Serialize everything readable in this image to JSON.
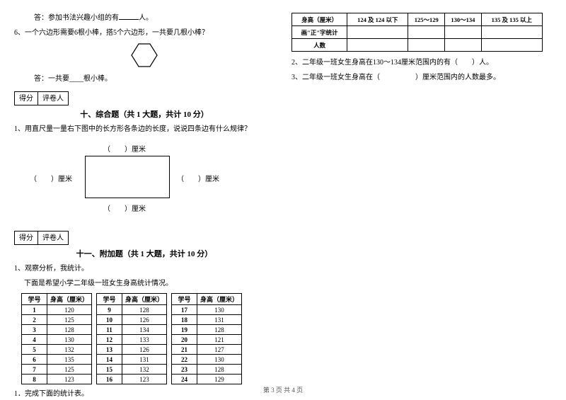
{
  "left": {
    "q5_answer_prefix": "答：参加书法兴趣小组的有",
    "q5_answer_suffix": "人。",
    "q6_text": "6、一个六边形需要6根小棒，搭5个六边形，一共要几根小棒？",
    "q6_answer": "答：一共要____根小棒。",
    "sec10": {
      "score_label": "得分",
      "grader_label": "评卷人",
      "title": "十、综合题（共 1 大题，共计 10 分）",
      "q1": "1、用直尺量一量右下图中的长方形各条边的长度，说说四条边有什么规律？",
      "unit": "厘米"
    },
    "sec11": {
      "score_label": "得分",
      "grader_label": "评卷人",
      "title": "十一、附加题（共 1 大题，共计 10 分）",
      "q1": "1、观察分析，我统计。",
      "q1_sub": "下面是希望小学二年级一班女生身高统计情况。",
      "headers": [
        "学号",
        "身高（厘米）"
      ],
      "rows_a": [
        [
          "1",
          "120"
        ],
        [
          "2",
          "125"
        ],
        [
          "3",
          "128"
        ],
        [
          "4",
          "130"
        ],
        [
          "5",
          "132"
        ],
        [
          "6",
          "135"
        ],
        [
          "7",
          "125"
        ],
        [
          "8",
          "123"
        ]
      ],
      "rows_b": [
        [
          "9",
          "128"
        ],
        [
          "10",
          "126"
        ],
        [
          "11",
          "134"
        ],
        [
          "12",
          "133"
        ],
        [
          "13",
          "126"
        ],
        [
          "14",
          "131"
        ],
        [
          "15",
          "132"
        ],
        [
          "16",
          "123"
        ]
      ],
      "rows_c": [
        [
          "17",
          "130"
        ],
        [
          "18",
          "131"
        ],
        [
          "19",
          "128"
        ],
        [
          "20",
          "121"
        ],
        [
          "21",
          "127"
        ],
        [
          "22",
          "130"
        ],
        [
          "23",
          "128"
        ],
        [
          "24",
          "129"
        ]
      ],
      "sub1": "1．完成下面的统计表。"
    }
  },
  "right": {
    "stats_headers": [
      "身高（厘米）",
      "124 及 124 以下",
      "125～129",
      "130～134",
      "135 及 135 以上"
    ],
    "stats_rows": [
      "画\"正\"字统计",
      "人数"
    ],
    "q2": "2、二年级一班女生身高在130～134厘米范围内的有（　　）人。",
    "q3": "3、二年级一班女生身高在（　　　　　）厘米范围内的人数最多。"
  },
  "footer": "第 3 页  共 4 页"
}
